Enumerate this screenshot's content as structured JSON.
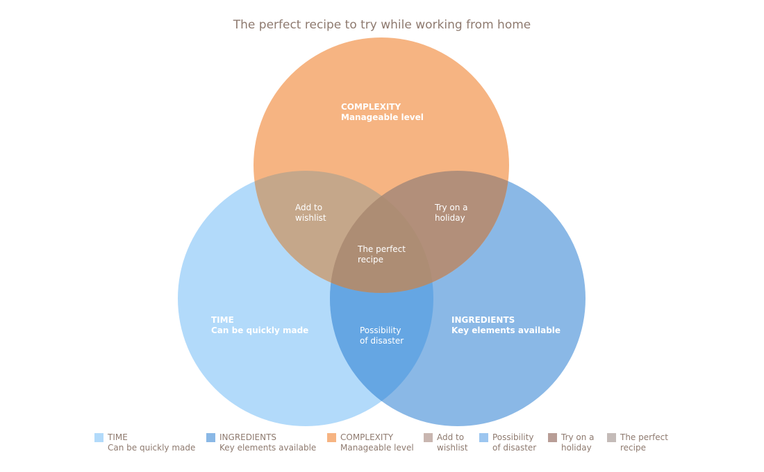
{
  "title": "The perfect recipe to try while working from home",
  "colors": {
    "time": "#b2dafa",
    "ingredients": "#8ab8e6",
    "complexity": "#f6b482",
    "time_complexity": "#c5a78a",
    "complexity_ingredients": "#b28f7a",
    "time_ingredients": "#65a6e3",
    "all": "#ad8d74",
    "legend_text": "#8e7a6f"
  },
  "sets": {
    "time": {
      "name": "TIME",
      "desc": "Can be quickly made"
    },
    "ingredients": {
      "name": "INGREDIENTS",
      "desc": "Key elements available"
    },
    "complexity": {
      "name": "COMPLEXITY",
      "desc": "Manageable level"
    }
  },
  "intersections": {
    "time_complexity": {
      "line1": "Add to",
      "line2": "wishlist"
    },
    "complexity_ingredients": {
      "line1": "Try on a",
      "line2": "holiday"
    },
    "time_ingredients": {
      "line1": "Possibility",
      "line2": "of disaster"
    },
    "all": {
      "line1": "The perfect",
      "line2": "recipe"
    }
  },
  "legend": [
    {
      "key": "time",
      "text": "TIME\nCan be quickly made",
      "color": "#b2dafa"
    },
    {
      "key": "ingredients",
      "text": "INGREDIENTS\nKey elements available",
      "color": "#8ab8e6"
    },
    {
      "key": "complexity",
      "text": "COMPLEXITY\nManageable level",
      "color": "#f6b482"
    },
    {
      "key": "time_complexity",
      "text": "Add to\nwishlist",
      "color": "#c9b6b0"
    },
    {
      "key": "time_ingredients",
      "text": "Possibility\nof disaster",
      "color": "#9cc6f0"
    },
    {
      "key": "complexity_ingredients",
      "text": "Try on a\nholiday",
      "color": "#b89d96"
    },
    {
      "key": "all",
      "text": "The perfect\nrecipe",
      "color": "#c4bbb8"
    }
  ]
}
